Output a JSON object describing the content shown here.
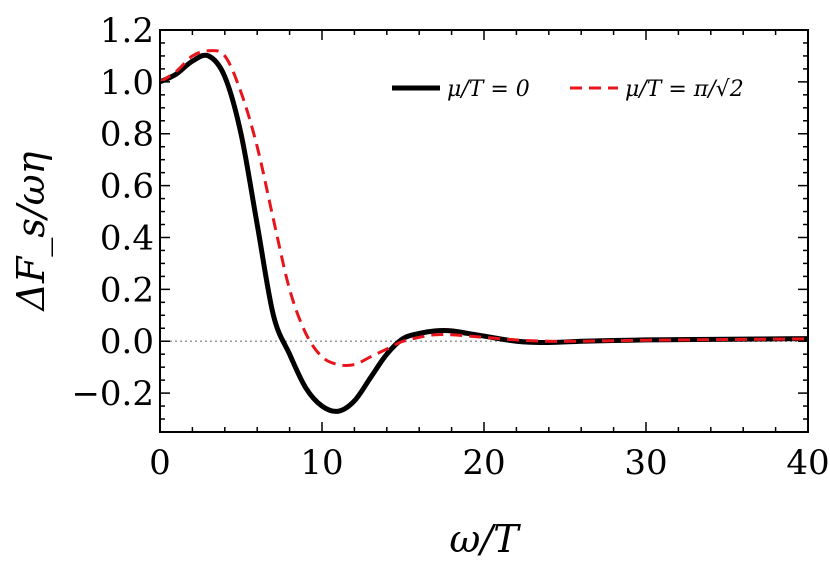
{
  "chart_data": {
    "type": "line",
    "xlabel": "ω/T",
    "ylabel": "ΔF_s/ωη",
    "xlim": [
      0,
      40
    ],
    "ylim": [
      -0.35,
      1.2
    ],
    "xticks": [
      0,
      10,
      20,
      30,
      40
    ],
    "xtick_labels": [
      "0",
      "10",
      "20",
      "30",
      "40"
    ],
    "yticks": [
      -0.2,
      0.0,
      0.2,
      0.4,
      0.6,
      0.8,
      1.0,
      1.2
    ],
    "ytick_labels": [
      "−0.2",
      "0.0",
      "0.2",
      "0.4",
      "0.6",
      "0.8",
      "1.0",
      "1.2"
    ],
    "reference_line": {
      "y": 0,
      "style": "dotted",
      "color": "#999999"
    },
    "legend_position": "top-right",
    "series": [
      {
        "name": "μ/T = 0",
        "color": "#000000",
        "style": "solid",
        "x": [
          0,
          1,
          2,
          3,
          4,
          5,
          6,
          7,
          8,
          9,
          10,
          11,
          12,
          13,
          14,
          15,
          16,
          17,
          18,
          19,
          20,
          22,
          24,
          26,
          28,
          30,
          32,
          34,
          36,
          38,
          40
        ],
        "y": [
          1.0,
          1.03,
          1.08,
          1.1,
          1.02,
          0.8,
          0.45,
          0.1,
          -0.05,
          -0.18,
          -0.25,
          -0.27,
          -0.23,
          -0.14,
          -0.05,
          0.01,
          0.03,
          0.04,
          0.04,
          0.03,
          0.02,
          0.0,
          -0.005,
          0.0,
          0.003,
          0.005,
          0.006,
          0.007,
          0.008,
          0.009,
          0.01
        ]
      },
      {
        "name": "μ/T = π/√2",
        "color": "#e8141b",
        "style": "dashed",
        "x": [
          0,
          1,
          2,
          3,
          4,
          5,
          6,
          7,
          8,
          9,
          10,
          11,
          12,
          13,
          14,
          15,
          16,
          17,
          18,
          19,
          20,
          22,
          24,
          26,
          28,
          30,
          32,
          34,
          36,
          38,
          40
        ],
        "y": [
          1.0,
          1.04,
          1.1,
          1.12,
          1.1,
          0.96,
          0.75,
          0.47,
          0.2,
          0.03,
          -0.06,
          -0.09,
          -0.09,
          -0.06,
          -0.03,
          0.0,
          0.015,
          0.025,
          0.025,
          0.02,
          0.015,
          0.005,
          0.0,
          0.0,
          0.002,
          0.004,
          0.005,
          0.006,
          0.007,
          0.008,
          0.009
        ]
      }
    ]
  },
  "legend": {
    "entries": [
      {
        "label": "μ/T = 0",
        "color": "#000000",
        "style": "solid"
      },
      {
        "label": "μ/T = π/√2",
        "color": "#e8141b",
        "style": "dashed"
      }
    ]
  }
}
